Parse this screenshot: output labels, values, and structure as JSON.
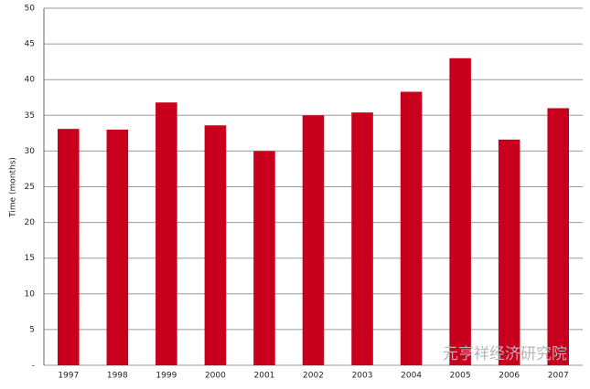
{
  "chart_data": {
    "type": "bar",
    "y_label": "Time (months)",
    "categories": [
      "1997",
      "1998",
      "1999",
      "2000",
      "2001",
      "2002",
      "2003",
      "2004",
      "2005",
      "2006",
      "2007"
    ],
    "values": [
      33.1,
      33,
      36.8,
      33.6,
      30,
      35,
      35.4,
      38.3,
      43,
      31.6,
      36
    ],
    "color": "#c8001e",
    "ylim": [
      0,
      50
    ],
    "yticks": [
      {
        "value": 0,
        "label": "-"
      },
      5,
      10,
      15,
      20,
      25,
      30,
      35,
      40,
      45,
      50
    ],
    "grid": true,
    "watermark": "元亨祥经济研究院"
  }
}
